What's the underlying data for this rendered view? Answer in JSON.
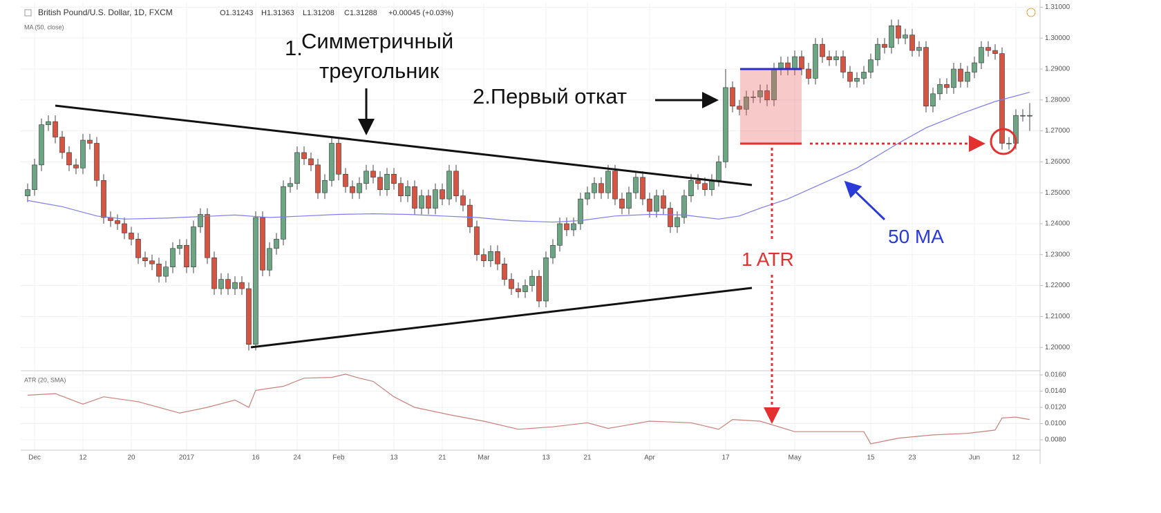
{
  "chart_data": [
    {
      "type": "candlestick",
      "title": "British Pound/U.S. Dollar, 1D, FXCM",
      "quote": [
        "O1.31243",
        "H1.31363",
        "L1.31208",
        "C1.31288",
        "+0.00045 (+0.03%)"
      ],
      "up_color": "#6ba583",
      "down_color": "#d75442",
      "open": [
        1.249,
        1.251,
        1.259,
        1.272,
        1.273,
        1.268,
        1.263,
        1.259,
        1.258,
        1.267,
        1.266,
        1.254,
        1.242,
        1.241,
        1.24,
        1.237,
        1.235,
        1.229,
        1.228,
        1.227,
        1.223,
        1.226,
        1.232,
        1.233,
        1.226,
        1.239,
        1.243,
        1.229,
        1.219,
        1.222,
        1.219,
        1.221,
        1.219,
        1.201,
        1.242,
        1.225,
        1.232,
        1.235,
        1.252,
        1.253,
        1.263,
        1.261,
        1.259,
        1.25,
        1.254,
        1.266,
        1.256,
        1.252,
        1.25,
        1.253,
        1.257,
        1.255,
        1.251,
        1.256,
        1.253,
        1.249,
        1.252,
        1.245,
        1.249,
        1.245,
        1.251,
        1.248,
        1.257,
        1.249,
        1.246,
        1.239,
        1.23,
        1.228,
        1.231,
        1.227,
        1.222,
        1.219,
        1.218,
        1.22,
        1.223,
        1.215,
        1.229,
        1.233,
        1.24,
        1.238,
        1.24,
        1.248,
        1.25,
        1.253,
        1.25,
        1.257,
        1.248,
        1.245,
        1.25,
        1.255,
        1.248,
        1.244,
        1.249,
        1.245,
        1.239,
        1.242,
        1.249,
        1.254,
        1.253,
        1.251,
        1.254,
        1.26,
        1.284,
        1.278,
        1.277,
        1.281,
        1.281,
        1.283,
        1.28,
        1.29,
        1.292,
        1.29,
        1.294,
        1.29,
        1.287,
        1.298,
        1.294,
        1.293,
        1.294,
        1.289,
        1.286,
        1.287,
        1.289,
        1.293,
        1.298,
        1.297,
        1.304,
        1.3,
        1.301,
        1.296,
        1.297,
        1.278,
        1.282,
        1.285,
        1.284,
        1.29,
        1.286,
        1.289,
        1.292,
        1.297,
        1.296,
        1.295,
        1.266,
        1.266,
        1.275,
        1.275
      ],
      "high": [
        1.253,
        1.261,
        1.274,
        1.275,
        1.275,
        1.27,
        1.265,
        1.261,
        1.269,
        1.269,
        1.268,
        1.256,
        1.244,
        1.243,
        1.242,
        1.239,
        1.237,
        1.231,
        1.23,
        1.229,
        1.228,
        1.234,
        1.235,
        1.235,
        1.241,
        1.245,
        1.245,
        1.231,
        1.224,
        1.224,
        1.223,
        1.223,
        1.221,
        1.244,
        1.244,
        1.234,
        1.237,
        1.254,
        1.255,
        1.265,
        1.265,
        1.263,
        1.261,
        1.256,
        1.268,
        1.268,
        1.258,
        1.254,
        1.255,
        1.259,
        1.259,
        1.257,
        1.258,
        1.258,
        1.255,
        1.254,
        1.254,
        1.251,
        1.251,
        1.253,
        1.253,
        1.259,
        1.259,
        1.251,
        1.248,
        1.241,
        1.232,
        1.233,
        1.233,
        1.229,
        1.224,
        1.221,
        1.222,
        1.225,
        1.225,
        1.231,
        1.235,
        1.242,
        1.242,
        1.242,
        1.25,
        1.252,
        1.255,
        1.255,
        1.259,
        1.259,
        1.25,
        1.252,
        1.257,
        1.257,
        1.25,
        1.251,
        1.251,
        1.247,
        1.244,
        1.251,
        1.256,
        1.256,
        1.255,
        1.256,
        1.262,
        1.29,
        1.286,
        1.28,
        1.283,
        1.283,
        1.285,
        1.285,
        1.292,
        1.294,
        1.294,
        1.296,
        1.296,
        1.292,
        1.3,
        1.3,
        1.296,
        1.296,
        1.296,
        1.291,
        1.289,
        1.291,
        1.295,
        1.3,
        1.3,
        1.306,
        1.306,
        1.303,
        1.303,
        1.299,
        1.299,
        1.284,
        1.287,
        1.287,
        1.292,
        1.292,
        1.291,
        1.294,
        1.299,
        1.299,
        1.298,
        1.297,
        1.268,
        1.277,
        1.277,
        1.279
      ],
      "low": [
        1.247,
        1.249,
        1.257,
        1.27,
        1.266,
        1.261,
        1.257,
        1.256,
        1.256,
        1.264,
        1.252,
        1.24,
        1.239,
        1.238,
        1.235,
        1.233,
        1.227,
        1.226,
        1.225,
        1.221,
        1.221,
        1.224,
        1.23,
        1.224,
        1.224,
        1.237,
        1.227,
        1.217,
        1.217,
        1.217,
        1.217,
        1.217,
        1.199,
        1.199,
        1.223,
        1.223,
        1.23,
        1.233,
        1.25,
        1.251,
        1.259,
        1.257,
        1.248,
        1.248,
        1.252,
        1.254,
        1.25,
        1.248,
        1.248,
        1.251,
        1.253,
        1.249,
        1.249,
        1.251,
        1.247,
        1.247,
        1.243,
        1.243,
        1.243,
        1.243,
        1.246,
        1.246,
        1.247,
        1.244,
        1.237,
        1.228,
        1.226,
        1.226,
        1.225,
        1.22,
        1.217,
        1.216,
        1.216,
        1.218,
        1.213,
        1.213,
        1.227,
        1.231,
        1.236,
        1.236,
        1.238,
        1.246,
        1.248,
        1.248,
        1.248,
        1.246,
        1.243,
        1.243,
        1.248,
        1.246,
        1.242,
        1.242,
        1.243,
        1.237,
        1.237,
        1.24,
        1.247,
        1.251,
        1.249,
        1.249,
        1.252,
        1.258,
        1.276,
        1.275,
        1.275,
        1.279,
        1.279,
        1.278,
        1.278,
        1.288,
        1.288,
        1.288,
        1.288,
        1.285,
        1.285,
        1.292,
        1.291,
        1.291,
        1.287,
        1.284,
        1.284,
        1.285,
        1.287,
        1.291,
        1.295,
        1.295,
        1.298,
        1.298,
        1.294,
        1.294,
        1.276,
        1.276,
        1.28,
        1.282,
        1.282,
        1.284,
        1.284,
        1.287,
        1.29,
        1.294,
        1.293,
        1.264,
        1.264,
        1.264,
        1.273,
        1.27
      ],
      "close": [
        1.251,
        1.259,
        1.272,
        1.273,
        1.268,
        1.263,
        1.259,
        1.258,
        1.267,
        1.266,
        1.254,
        1.242,
        1.241,
        1.24,
        1.237,
        1.235,
        1.229,
        1.228,
        1.227,
        1.223,
        1.226,
        1.232,
        1.233,
        1.226,
        1.239,
        1.243,
        1.229,
        1.219,
        1.222,
        1.219,
        1.221,
        1.219,
        1.201,
        1.242,
        1.225,
        1.232,
        1.235,
        1.252,
        1.253,
        1.263,
        1.261,
        1.259,
        1.25,
        1.254,
        1.266,
        1.256,
        1.252,
        1.25,
        1.253,
        1.257,
        1.255,
        1.251,
        1.256,
        1.253,
        1.249,
        1.252,
        1.245,
        1.249,
        1.245,
        1.251,
        1.248,
        1.257,
        1.249,
        1.246,
        1.239,
        1.23,
        1.228,
        1.231,
        1.227,
        1.222,
        1.219,
        1.218,
        1.22,
        1.223,
        1.215,
        1.229,
        1.233,
        1.24,
        1.238,
        1.24,
        1.248,
        1.25,
        1.253,
        1.25,
        1.257,
        1.248,
        1.245,
        1.25,
        1.255,
        1.248,
        1.244,
        1.249,
        1.245,
        1.239,
        1.242,
        1.249,
        1.254,
        1.253,
        1.251,
        1.254,
        1.26,
        1.284,
        1.278,
        1.277,
        1.281,
        1.281,
        1.283,
        1.28,
        1.29,
        1.292,
        1.29,
        1.294,
        1.29,
        1.287,
        1.298,
        1.294,
        1.293,
        1.294,
        1.289,
        1.286,
        1.287,
        1.289,
        1.293,
        1.298,
        1.297,
        1.304,
        1.3,
        1.301,
        1.296,
        1.297,
        1.278,
        1.282,
        1.285,
        1.284,
        1.29,
        1.286,
        1.289,
        1.292,
        1.297,
        1.296,
        1.295,
        1.266,
        1.266,
        1.275,
        1.275,
        1.275
      ],
      "series": [
        {
          "name": "MA (50, close)",
          "color": "#7b7bf0",
          "x": [
            0,
            5,
            10,
            14,
            20,
            27,
            30,
            35,
            40,
            45,
            50,
            55,
            60,
            65,
            70,
            76,
            80,
            85,
            90,
            95,
            100,
            103,
            106,
            110,
            114,
            120,
            126,
            130,
            135,
            140,
            145
          ],
          "values": [
            1.2475,
            1.2455,
            1.2425,
            1.2415,
            1.2418,
            1.2425,
            1.2428,
            1.242,
            1.2425,
            1.243,
            1.2432,
            1.243,
            1.2425,
            1.242,
            1.241,
            1.2405,
            1.241,
            1.2425,
            1.243,
            1.2428,
            1.2415,
            1.2425,
            1.245,
            1.248,
            1.252,
            1.258,
            1.266,
            1.271,
            1.2755,
            1.2795,
            1.2825
          ]
        }
      ],
      "xlim": [
        -1,
        146.5
      ],
      "ylim": [
        1.1929,
        1.3112
      ],
      "yticks": [
        {
          "value": 1.31,
          "label": "1.31000"
        },
        {
          "value": 1.3,
          "label": "1.30000"
        },
        {
          "value": 1.29,
          "label": "1.29000"
        },
        {
          "value": 1.28,
          "label": "1.28000"
        },
        {
          "value": 1.27,
          "label": "1.27000"
        },
        {
          "value": 1.26,
          "label": "1.26000"
        },
        {
          "value": 1.25,
          "label": "1.25000"
        },
        {
          "value": 1.24,
          "label": "1.24000"
        },
        {
          "value": 1.23,
          "label": "1.23000"
        },
        {
          "value": 1.22,
          "label": "1.22000"
        },
        {
          "value": 1.21,
          "label": "1.21000"
        },
        {
          "value": 1.2,
          "label": "1.20000"
        }
      ],
      "grid": true,
      "annotations": [
        "1.",
        "Симметричный",
        "треугольник",
        "2.Первый откат",
        "50 MA",
        "1 ATR"
      ]
    },
    {
      "type": "line",
      "series": [
        {
          "name": "ATR (20, SMA)",
          "color": "#c98078",
          "x": [
            0,
            4,
            8,
            11,
            16,
            22,
            26,
            30,
            32,
            33,
            37,
            40,
            44,
            46,
            48,
            50,
            53,
            56,
            61,
            66,
            71,
            76,
            81,
            84,
            90,
            96,
            100,
            102,
            106,
            111,
            116,
            121,
            122,
            126,
            131,
            136,
            140,
            141,
            143,
            145
          ],
          "values": [
            0.0135,
            0.0137,
            0.0124,
            0.0133,
            0.0127,
            0.0113,
            0.012,
            0.0129,
            0.012,
            0.0141,
            0.0146,
            0.0156,
            0.0157,
            0.0161,
            0.0156,
            0.0152,
            0.0133,
            0.012,
            0.0111,
            0.0103,
            0.0093,
            0.0096,
            0.0101,
            0.0094,
            0.0103,
            0.0101,
            0.0093,
            0.0105,
            0.0103,
            0.009,
            0.009,
            0.009,
            0.0075,
            0.0082,
            0.0086,
            0.0088,
            0.0092,
            0.0107,
            0.0108,
            0.0105
          ]
        }
      ],
      "xlim": [
        -1,
        146.5
      ],
      "ylim": [
        0.00672,
        0.01643
      ],
      "yticks": [
        {
          "value": 0.016,
          "label": "0.0160"
        },
        {
          "value": 0.014,
          "label": "0.0140"
        },
        {
          "value": 0.012,
          "label": "0.0120"
        },
        {
          "value": 0.01,
          "label": "0.0100"
        },
        {
          "value": 0.008,
          "label": "0.0080"
        }
      ],
      "xticks": [
        {
          "value": 1,
          "label": "Dec"
        },
        {
          "value": 8,
          "label": "12"
        },
        {
          "value": 15,
          "label": "20"
        },
        {
          "value": 23,
          "label": "2017"
        },
        {
          "value": 33,
          "label": "16"
        },
        {
          "value": 39,
          "label": "24"
        },
        {
          "value": 45,
          "label": "Feb"
        },
        {
          "value": 53,
          "label": "13"
        },
        {
          "value": 60,
          "label": "21"
        },
        {
          "value": 66,
          "label": "Mar"
        },
        {
          "value": 75,
          "label": "13"
        },
        {
          "value": 81,
          "label": "21"
        },
        {
          "value": 90,
          "label": "Apr"
        },
        {
          "value": 101,
          "label": "17"
        },
        {
          "value": 111,
          "label": "May"
        },
        {
          "value": 122,
          "label": "15"
        },
        {
          "value": 128,
          "label": "23"
        },
        {
          "value": 137,
          "label": "Jun"
        },
        {
          "value": 143,
          "label": "12"
        }
      ],
      "grid": true
    }
  ]
}
